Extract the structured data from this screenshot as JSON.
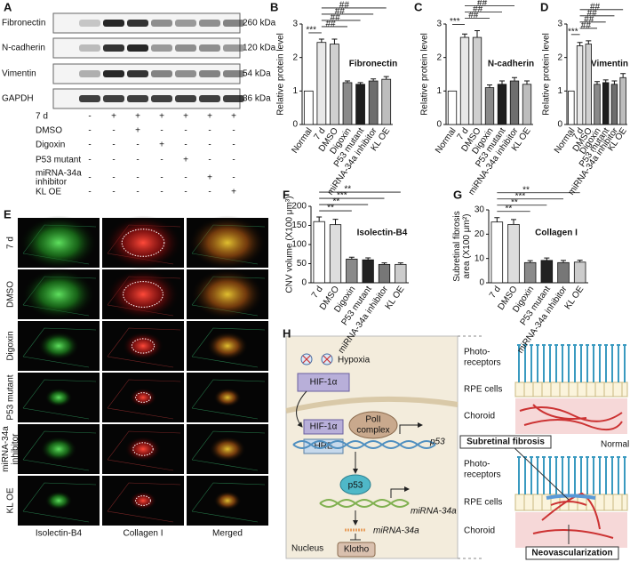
{
  "panel_labels": [
    "A",
    "B",
    "C",
    "D",
    "E",
    "F",
    "G",
    "H"
  ],
  "blot": {
    "proteins": [
      "Fibronectin",
      "N-cadherin",
      "Vimentin",
      "GAPDH"
    ],
    "sizes": [
      "260 kDa",
      "120 kDa",
      "54 kDa",
      "36 kDa"
    ],
    "conditions": [
      [
        "7 d"
      ],
      [
        "DMSO"
      ],
      [
        "Digoxin"
      ],
      [
        "P53 mutant"
      ],
      [
        "miRNA-34a",
        "inhibitor"
      ],
      [
        "KL OE"
      ]
    ],
    "signs": [
      [
        "-",
        "+",
        "+",
        "+",
        "+",
        "+",
        "+"
      ],
      [
        "-",
        "-",
        "+",
        "-",
        "-",
        "-",
        "-"
      ],
      [
        "-",
        "-",
        "-",
        "+",
        "-",
        "-",
        "-"
      ],
      [
        "-",
        "-",
        "-",
        "-",
        "+",
        "-",
        "-"
      ],
      [
        "-",
        "-",
        "-",
        "-",
        "-",
        "+",
        "-"
      ],
      [
        "-",
        "-",
        "-",
        "-",
        "-",
        "-",
        "+"
      ]
    ]
  },
  "chart_data": [
    {
      "type": "bar",
      "title": "Fibronectin",
      "ylabel": [
        "Relative protein level"
      ],
      "categories": [
        "Normal",
        "7 d",
        "DMSO",
        "Digoxin",
        "P53 mutant",
        "miRNA-34a inhibitor",
        "KL OE"
      ],
      "values": [
        1,
        2.45,
        2.4,
        1.25,
        1.2,
        1.3,
        1.35
      ],
      "errors": [
        0,
        0.1,
        0.15,
        0.05,
        0.05,
        0.06,
        0.08
      ],
      "colors": [
        "#ffffff",
        "#e8e8e8",
        "#cfcfcf",
        "#8a8a8a",
        "#1e1e1e",
        "#6e6e6e",
        "#bdbdbd"
      ],
      "ylim": [
        0,
        3
      ],
      "yticks": [
        0,
        1,
        2,
        3
      ],
      "annotations": [
        "***",
        "##",
        "##",
        "##",
        "##"
      ]
    },
    {
      "type": "bar",
      "title": "N-cadherin",
      "ylabel": [
        "Relative protein level"
      ],
      "categories": [
        "Normal",
        "7 d",
        "DMSO",
        "Digoxin",
        "P53 mutant",
        "miRNA-34a inhibitor",
        "KL OE"
      ],
      "values": [
        1,
        2.6,
        2.6,
        1.1,
        1.2,
        1.3,
        1.2
      ],
      "errors": [
        0,
        0.1,
        0.2,
        0.08,
        0.1,
        0.1,
        0.1
      ],
      "colors": [
        "#ffffff",
        "#e8e8e8",
        "#cfcfcf",
        "#8a8a8a",
        "#1e1e1e",
        "#6e6e6e",
        "#bdbdbd"
      ],
      "ylim": [
        0,
        3
      ],
      "yticks": [
        0,
        1,
        2,
        3
      ],
      "annotations": [
        "***",
        "##",
        "##",
        "##",
        "##"
      ]
    },
    {
      "type": "bar",
      "title": "Vimentin",
      "ylabel": [
        "Relative protein level"
      ],
      "categories": [
        "Normal",
        "7 d",
        "DMSO",
        "Digoxin",
        "P53 mutant",
        "miRNA-34a inhibitor",
        "KL OE"
      ],
      "values": [
        1,
        2.35,
        2.4,
        1.2,
        1.25,
        1.2,
        1.4
      ],
      "errors": [
        0,
        0.1,
        0.1,
        0.08,
        0.08,
        0.1,
        0.12
      ],
      "colors": [
        "#ffffff",
        "#e8e8e8",
        "#cfcfcf",
        "#8a8a8a",
        "#1e1e1e",
        "#6e6e6e",
        "#bdbdbd"
      ],
      "ylim": [
        0,
        3
      ],
      "yticks": [
        0,
        1,
        2,
        3
      ],
      "annotations": [
        "***",
        "##",
        "##",
        "##",
        "##"
      ]
    },
    {
      "type": "bar",
      "title": "Isolectin-B4",
      "title_color": "#1a9a1a",
      "ylabel": [
        "CNV volume (X100 μm³)"
      ],
      "categories": [
        "7 d",
        "DMSO",
        "Digoxin",
        "P53 mutant",
        "miRNA-34a inhibitor",
        "KL OE"
      ],
      "values": [
        160,
        152,
        62,
        60,
        48,
        48
      ],
      "errors": [
        12,
        14,
        5,
        5,
        4,
        4
      ],
      "colors": [
        "#ffffff",
        "#dddddd",
        "#8a8a8a",
        "#222222",
        "#777777",
        "#cccccc"
      ],
      "ylim": [
        0,
        200
      ],
      "yticks": [
        0,
        50,
        100,
        150,
        200
      ],
      "annotations": [
        "**",
        "**",
        "***",
        "**"
      ]
    },
    {
      "type": "bar",
      "title": "Collagen I",
      "title_color": "#d01818",
      "ylabel": [
        "Subretinal fibrosis",
        "area (X100 μm²)"
      ],
      "categories": [
        "7 d",
        "DMSO",
        "Digoxin",
        "P53 mutant",
        "miRNA-34a inhibitor",
        "KL OE"
      ],
      "values": [
        25,
        24,
        8.3,
        9.2,
        8.3,
        8.5
      ],
      "errors": [
        1.8,
        2,
        0.8,
        1,
        0.9,
        0.8
      ],
      "colors": [
        "#ffffff",
        "#dddddd",
        "#8a8a8a",
        "#222222",
        "#777777",
        "#cccccc"
      ],
      "ylim": [
        0,
        30
      ],
      "yticks": [
        0,
        10,
        20,
        30
      ],
      "annotations": [
        "**",
        "**",
        "***",
        "**"
      ]
    }
  ],
  "images": {
    "rows": [
      [
        "7 d"
      ],
      [
        "DMSO"
      ],
      [
        "Digoxin"
      ],
      [
        "P53 mutant"
      ],
      [
        "miRNA-34a",
        "inhibitor"
      ],
      [
        "KL OE"
      ]
    ],
    "columns": [
      "Isolectin-B4",
      "Collagen I",
      "Merged"
    ]
  },
  "diagram": {
    "hypoxia": "Hypoxia",
    "hif": "HIF-1α",
    "hif_nuclear": "HIF-1α",
    "hre": "HRE",
    "pol": [
      "PolI",
      "complex"
    ],
    "gene": "p53",
    "protein": "p53",
    "mirna_gene": "miRNA-34a",
    "mirna": "miRNA-34a",
    "klotho": "Klotho",
    "nucleus": "Nucleus",
    "normal_layers": [
      [
        "Photo-",
        "receptors"
      ],
      [
        "RPE cells"
      ],
      [
        "Choroid"
      ]
    ],
    "normal": "Normal",
    "disease_layers": [
      [
        "Photo-",
        "receptors"
      ],
      [
        "RPE cells"
      ],
      [
        "Choroid"
      ]
    ],
    "fibrosis": "Subretinal fibrosis",
    "neovascularization": "Neovascularization"
  }
}
